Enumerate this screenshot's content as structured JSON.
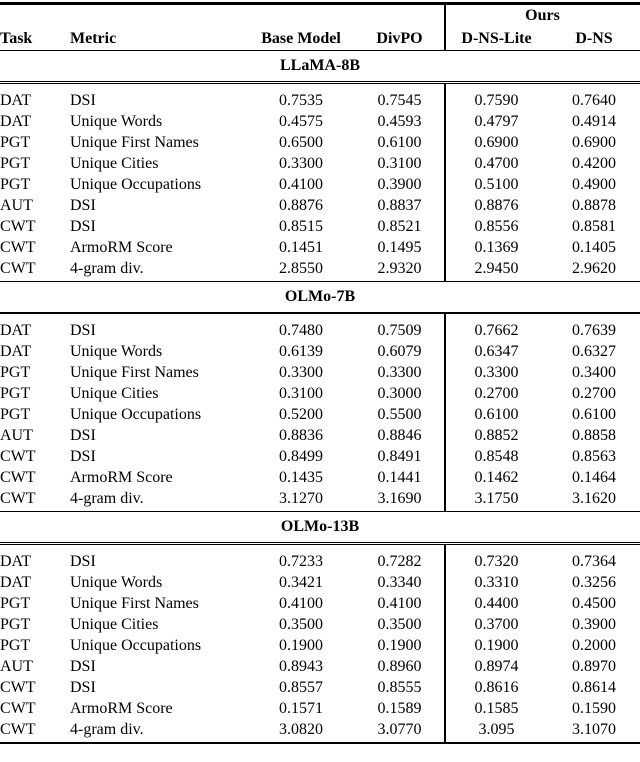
{
  "table": {
    "ours_label": "Ours",
    "columns": [
      "Task",
      "Metric",
      "Base Model",
      "DivPO",
      "D-NS-Lite",
      "D-NS"
    ],
    "sections": [
      {
        "title": "LLaMA-8B",
        "rows": [
          {
            "task": "DAT",
            "metric": "DSI",
            "values": [
              "0.7535",
              "0.7545",
              "0.7590",
              "0.7640"
            ],
            "bold": [
              3
            ]
          },
          {
            "task": "DAT",
            "metric": "Unique Words",
            "values": [
              "0.4575",
              "0.4593",
              "0.4797",
              "0.4914"
            ],
            "bold": [
              3
            ]
          },
          {
            "task": "PGT",
            "metric": "Unique First Names",
            "values": [
              "0.6500",
              "0.6100",
              "0.6900",
              "0.6900"
            ],
            "bold": [
              2,
              3
            ]
          },
          {
            "task": "PGT",
            "metric": "Unique Cities",
            "values": [
              "0.3300",
              "0.3100",
              "0.4700",
              "0.4200"
            ],
            "bold": [
              2
            ]
          },
          {
            "task": "PGT",
            "metric": "Unique Occupations",
            "values": [
              "0.4100",
              "0.3900",
              "0.5100",
              "0.4900"
            ],
            "bold": [
              2
            ]
          },
          {
            "task": "AUT",
            "metric": "DSI",
            "values": [
              "0.8876",
              "0.8837",
              "0.8876",
              "0.8878"
            ],
            "bold": [
              3
            ]
          },
          {
            "task": "CWT",
            "metric": "DSI",
            "values": [
              "0.8515",
              "0.8521",
              "0.8556",
              "0.8581"
            ],
            "bold": [
              3
            ]
          },
          {
            "task": "CWT",
            "metric": "ArmoRM Score",
            "values": [
              "0.1451",
              "0.1495",
              "0.1369",
              "0.1405"
            ],
            "bold": [
              1
            ]
          },
          {
            "task": "CWT",
            "metric": "4-gram div.",
            "values": [
              "2.8550",
              "2.9320",
              "2.9450",
              "2.9620"
            ],
            "bold": [
              3
            ]
          }
        ]
      },
      {
        "title": "OLMo-7B",
        "rows": [
          {
            "task": "DAT",
            "metric": "DSI",
            "values": [
              "0.7480",
              "0.7509",
              "0.7662",
              "0.7639"
            ],
            "bold": [
              2
            ]
          },
          {
            "task": "DAT",
            "metric": "Unique Words",
            "values": [
              "0.6139",
              "0.6079",
              "0.6347",
              "0.6327"
            ],
            "bold": [
              2
            ]
          },
          {
            "task": "PGT",
            "metric": "Unique First Names",
            "values": [
              "0.3300",
              "0.3300",
              "0.3300",
              "0.3400"
            ],
            "bold": [
              3
            ]
          },
          {
            "task": "PGT",
            "metric": "Unique Cities",
            "values": [
              "0.3100",
              "0.3000",
              "0.2700",
              "0.2700"
            ],
            "bold": [
              0
            ]
          },
          {
            "task": "PGT",
            "metric": "Unique Occupations",
            "values": [
              "0.5200",
              "0.5500",
              "0.6100",
              "0.6100"
            ],
            "bold": [
              2,
              3
            ]
          },
          {
            "task": "AUT",
            "metric": "DSI",
            "values": [
              "0.8836",
              "0.8846",
              "0.8852",
              "0.8858"
            ],
            "bold": [
              3
            ]
          },
          {
            "task": "CWT",
            "metric": "DSI",
            "values": [
              "0.8499",
              "0.8491",
              "0.8548",
              "0.8563"
            ],
            "bold": [
              3
            ]
          },
          {
            "task": "CWT",
            "metric": "ArmoRM Score",
            "values": [
              "0.1435",
              "0.1441",
              "0.1462",
              "0.1464"
            ],
            "bold": [
              3
            ]
          },
          {
            "task": "CWT",
            "metric": "4-gram div.",
            "values": [
              "3.1270",
              "3.1690",
              "3.1750",
              "3.1620"
            ],
            "bold": [
              2
            ]
          }
        ]
      },
      {
        "title": "OLMo-13B",
        "rows": [
          {
            "task": "DAT",
            "metric": "DSI",
            "values": [
              "0.7233",
              "0.7282",
              "0.7320",
              "0.7364"
            ],
            "bold": [
              3
            ]
          },
          {
            "task": "DAT",
            "metric": "Unique Words",
            "values": [
              "0.3421",
              "0.3340",
              "0.3310",
              "0.3256"
            ],
            "bold": [
              0
            ]
          },
          {
            "task": "PGT",
            "metric": "Unique First Names",
            "values": [
              "0.4100",
              "0.4100",
              "0.4400",
              "0.4500"
            ],
            "bold": [
              3
            ]
          },
          {
            "task": "PGT",
            "metric": "Unique Cities",
            "values": [
              "0.3500",
              "0.3500",
              "0.3700",
              "0.3900"
            ],
            "bold": [
              3
            ]
          },
          {
            "task": "PGT",
            "metric": "Unique Occupations",
            "values": [
              "0.1900",
              "0.1900",
              "0.1900",
              "0.2000"
            ],
            "bold": [
              3
            ]
          },
          {
            "task": "AUT",
            "metric": "DSI",
            "values": [
              "0.8943",
              "0.8960",
              "0.8974",
              "0.8970"
            ],
            "bold": [
              2
            ]
          },
          {
            "task": "CWT",
            "metric": "DSI",
            "values": [
              "0.8557",
              "0.8555",
              "0.8616",
              "0.8614"
            ],
            "bold": [
              2
            ]
          },
          {
            "task": "CWT",
            "metric": "ArmoRM Score",
            "values": [
              "0.1571",
              "0.1589",
              "0.1585",
              "0.1590"
            ],
            "bold": [
              3
            ]
          },
          {
            "task": "CWT",
            "metric": "4-gram div.",
            "values": [
              "3.0820",
              "3.0770",
              "3.095",
              "3.1070"
            ],
            "bold": [
              3
            ]
          }
        ]
      }
    ]
  }
}
